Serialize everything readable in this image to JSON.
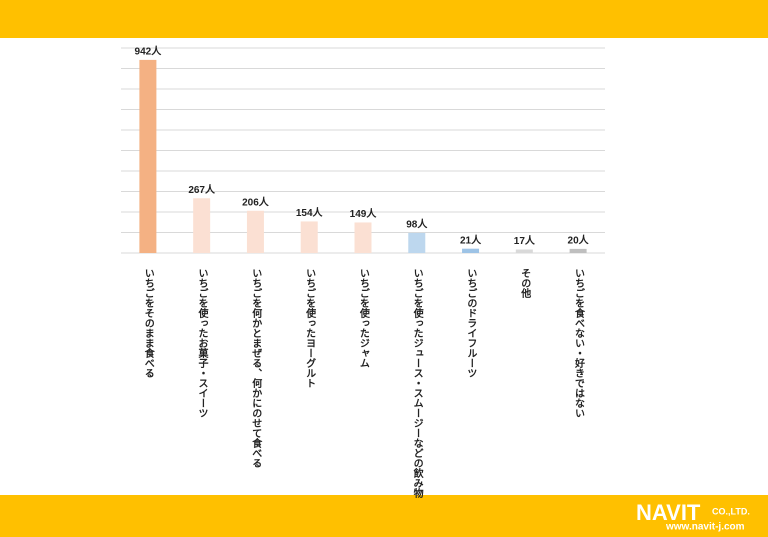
{
  "chart_data": {
    "type": "bar",
    "categories": [
      "いちごをそのまま食べる",
      "いちごを使ったお菓子・スイーツ",
      "いちごを何かとまぜる、何かにのせて食べる",
      "いちごを使ったヨーグルト",
      "いちごを使ったジャム",
      "いちごを使ったジュース・スムージーなどの飲み物",
      "いちごのドライフルーツ",
      "その他",
      "いちごを食べない・好きではない"
    ],
    "values": [
      942,
      267,
      206,
      154,
      149,
      98,
      21,
      17,
      20
    ],
    "value_labels": [
      "942人",
      "267人",
      "206人",
      "154人",
      "149人",
      "98人",
      "21人",
      "17人",
      "20人"
    ],
    "colors": [
      "#f4b183",
      "#fbe0d3",
      "#fbe0d3",
      "#fbe0d3",
      "#fbe0d3",
      "#bdd7ee",
      "#9dc3e6",
      "#d9d9d9",
      "#bfbfbf"
    ],
    "ylim": [
      0,
      1000
    ],
    "yticks": [
      0,
      100,
      200,
      300,
      400,
      500,
      600,
      700,
      800,
      900,
      1000
    ],
    "grid": true
  },
  "footer": {
    "logo": "NAVIT",
    "company": "CO.,LTD.",
    "url": "www.navit-j.com"
  }
}
